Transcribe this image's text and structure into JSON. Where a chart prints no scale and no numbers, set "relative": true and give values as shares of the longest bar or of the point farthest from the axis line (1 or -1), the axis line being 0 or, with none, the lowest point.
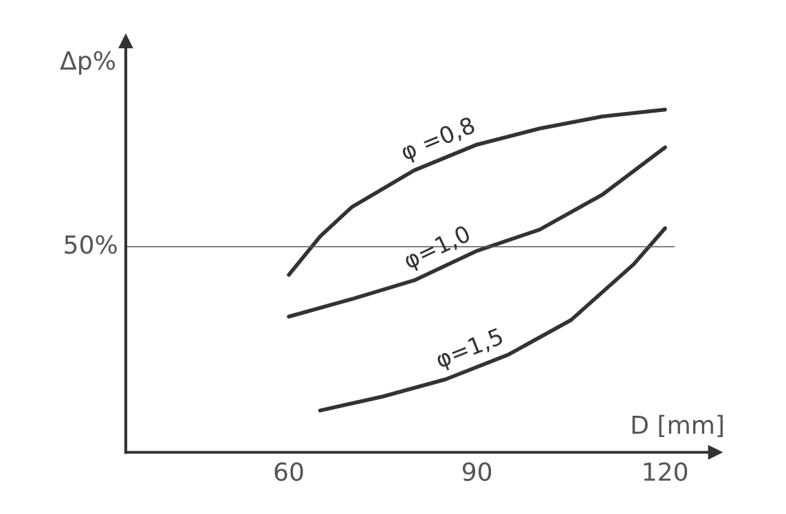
{
  "chart_data": {
    "type": "line",
    "relative": true,
    "xlabel": "D [mm]",
    "ylabel": "Δp%",
    "xlim": [
      34,
      128
    ],
    "xticks": [
      60,
      90,
      120
    ],
    "grid": false,
    "marker": "none",
    "line_style": "solid",
    "ref_lines": [
      {
        "axis": "y",
        "value": 0.6,
        "color": "#555555"
      }
    ],
    "annotations": [
      {
        "text": "50%",
        "x": 34,
        "y": 0.6
      }
    ],
    "series": [
      {
        "name": "φ =0,8",
        "color": "#333333",
        "x": [
          60,
          65,
          70,
          80,
          90,
          100,
          110,
          120
        ],
        "values": [
          0.518,
          0.63,
          0.715,
          0.823,
          0.898,
          0.945,
          0.98,
          1.0
        ]
      },
      {
        "name": "φ=1,0",
        "color": "#333333",
        "x": [
          60,
          70,
          80,
          90,
          100,
          110,
          120
        ],
        "values": [
          0.396,
          0.447,
          0.502,
          0.588,
          0.65,
          0.752,
          0.89
        ]
      },
      {
        "name": "φ=1,5",
        "color": "#333333",
        "x": [
          65,
          75,
          85,
          95,
          105,
          115,
          120
        ],
        "values": [
          0.122,
          0.163,
          0.213,
          0.285,
          0.386,
          0.549,
          0.654
        ]
      }
    ]
  }
}
